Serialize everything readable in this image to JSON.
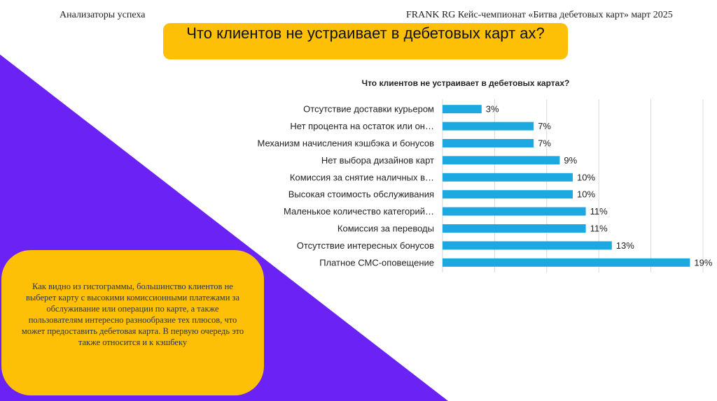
{
  "header": {
    "left_text": "Анализаторы успеха",
    "right_text": "FRANK RG Кейс-чемпионат «Битва дебетовых карт» март 2025"
  },
  "slide_title": "Что клиентов не устраивает в дебетовых карт ах?",
  "note_text": "Как видно из гистограммы, большинство клиентов не выберет карту с высокими комиссионными платежами за обслуживание или операции по карте, а также пользователям интересно разнообразие тех плюсов, что может предоставить дебетовая карта. В первую очередь это также относится и к кэшбеку",
  "colors": {
    "accent_yellow": "#fdc007",
    "accent_purple": "#6a22f5",
    "bar_blue": "#1ca8e0",
    "grid": "#d9d9d9"
  },
  "chart_data": {
    "type": "bar",
    "orientation": "horizontal",
    "title": "Что клиентов не устраивает в дебетовых картах?",
    "categories": [
      "Отсутствие доставки курьером",
      "Нет процента на остаток или он…",
      "Механизм начисления кэшбэка и бонусов",
      "Нет выбора дизайнов карт",
      "Комиссия за снятие наличных в…",
      "Высокая стоимость обслуживания",
      "Маленькое количество категорий…",
      "Комиссия за переводы",
      "Отсутствие интересных бонусов",
      "Платное СМС-оповещение"
    ],
    "values": [
      3,
      7,
      7,
      9,
      10,
      10,
      11,
      11,
      13,
      19
    ],
    "value_labels": [
      "3%",
      "7%",
      "7%",
      "9%",
      "10%",
      "10%",
      "11%",
      "11%",
      "13%",
      "19%"
    ],
    "xlim": [
      0,
      20
    ],
    "grid": true,
    "legend": "none"
  }
}
